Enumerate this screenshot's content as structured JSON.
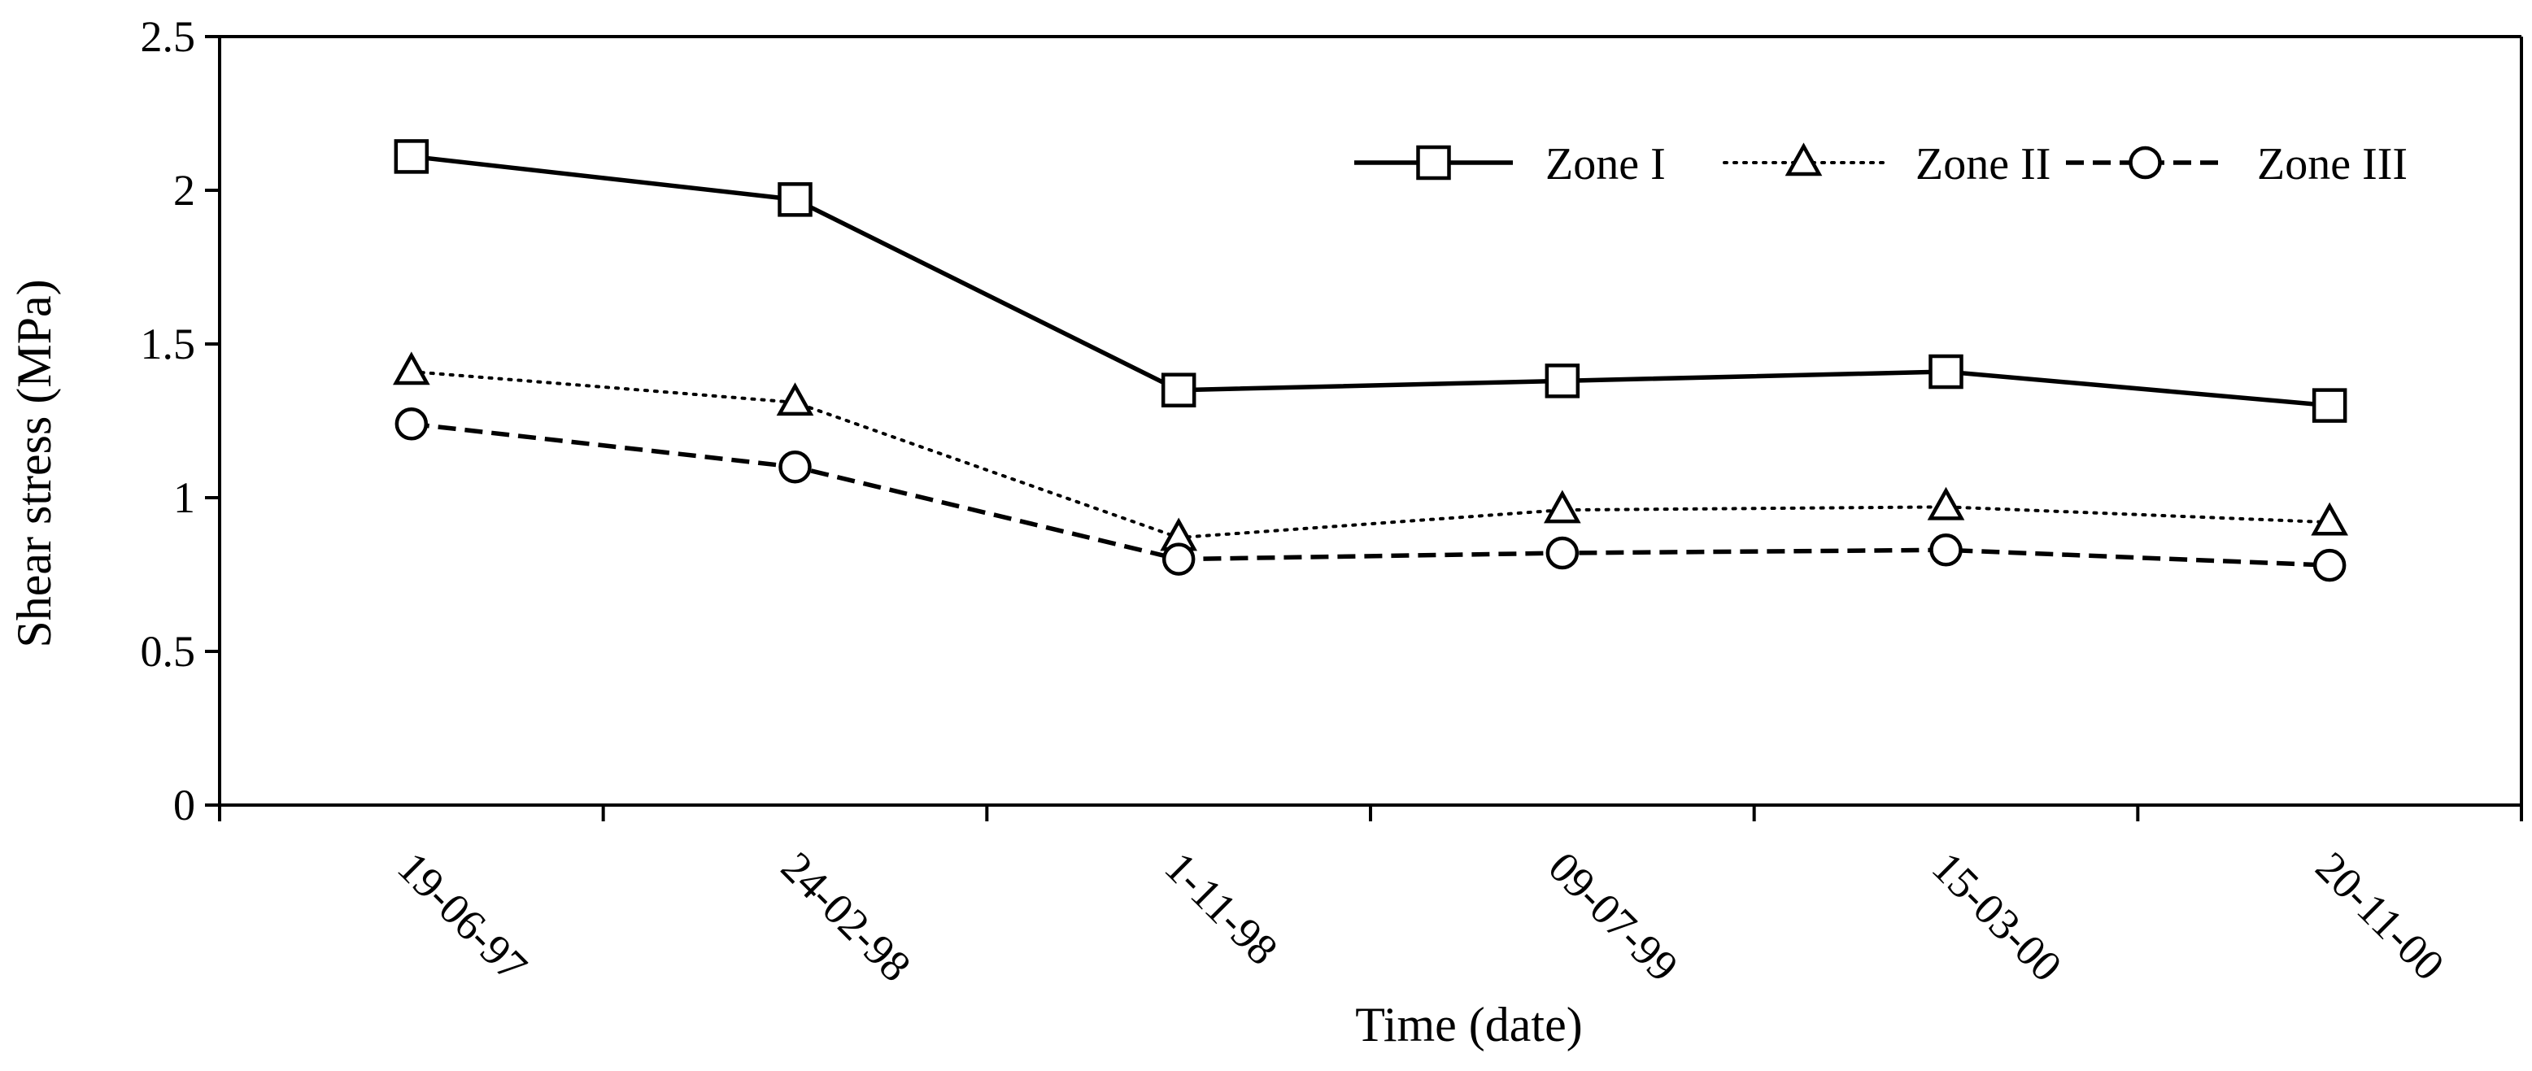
{
  "chart_data": {
    "type": "line",
    "title": "",
    "xlabel": "Time (date)",
    "ylabel": "Shear stress (MPa)",
    "categories": [
      "19-06-97",
      "24-02-98",
      "1-11-98",
      "09-07-99",
      "15-03-00",
      "20-11-00"
    ],
    "ylim": [
      0,
      2.5
    ],
    "yticks": [
      "0",
      "0.5",
      "1",
      "1.5",
      "2",
      "2.5"
    ],
    "grid": false,
    "legend_position": "top-right",
    "series": [
      {
        "name": "Zone I",
        "marker": "square",
        "line_style": "solid",
        "values": [
          2.11,
          1.97,
          1.35,
          1.38,
          1.41,
          1.3
        ]
      },
      {
        "name": "Zone II",
        "marker": "triangle",
        "line_style": "dotted",
        "values": [
          1.41,
          1.31,
          0.87,
          0.96,
          0.97,
          0.92
        ]
      },
      {
        "name": "Zone III",
        "marker": "circle",
        "line_style": "dashed",
        "values": [
          1.24,
          1.1,
          0.8,
          0.82,
          0.83,
          0.78
        ]
      }
    ]
  }
}
